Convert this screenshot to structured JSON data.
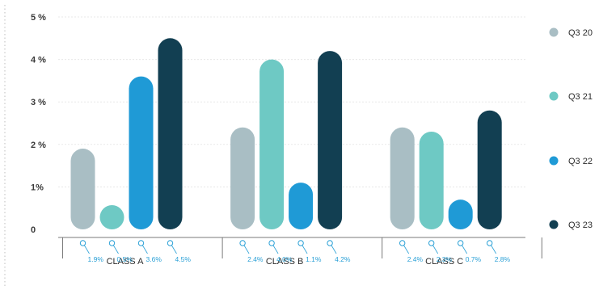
{
  "chart_data": {
    "type": "bar",
    "categories": [
      "CLASS A",
      "CLASS B",
      "CLASS C"
    ],
    "series": [
      {
        "name": "Q3 20",
        "values": [
          1.9,
          2.4,
          2.4
        ],
        "color": "#a9bec4"
      },
      {
        "name": "Q3 21",
        "values": [
          0.5,
          4.0,
          2.3
        ],
        "color": "#6ec9c4"
      },
      {
        "name": "Q3 22",
        "values": [
          3.6,
          1.1,
          0.7
        ],
        "color": "#1f9ad6"
      },
      {
        "name": "Q3 23",
        "values": [
          4.5,
          4.2,
          2.8
        ],
        "color": "#123f52"
      }
    ],
    "data_labels": [
      [
        "1.9%",
        "0.5%",
        "3.6%",
        "4.5%"
      ],
      [
        "2.4%",
        "4.0%",
        "1.1%",
        "4.2%"
      ],
      [
        "2.4%",
        "2.3%",
        "0.7%",
        "2.8%"
      ]
    ],
    "y_ticks": [
      "0",
      "1%",
      "2 %",
      "3 %",
      "4 %",
      "5 %"
    ],
    "y_tick_values": [
      0,
      1,
      2,
      3,
      4,
      5
    ],
    "ylim": [
      0,
      5
    ],
    "grid": "horizontal",
    "legend_position": "right",
    "label_color": "#2aa0d6"
  }
}
